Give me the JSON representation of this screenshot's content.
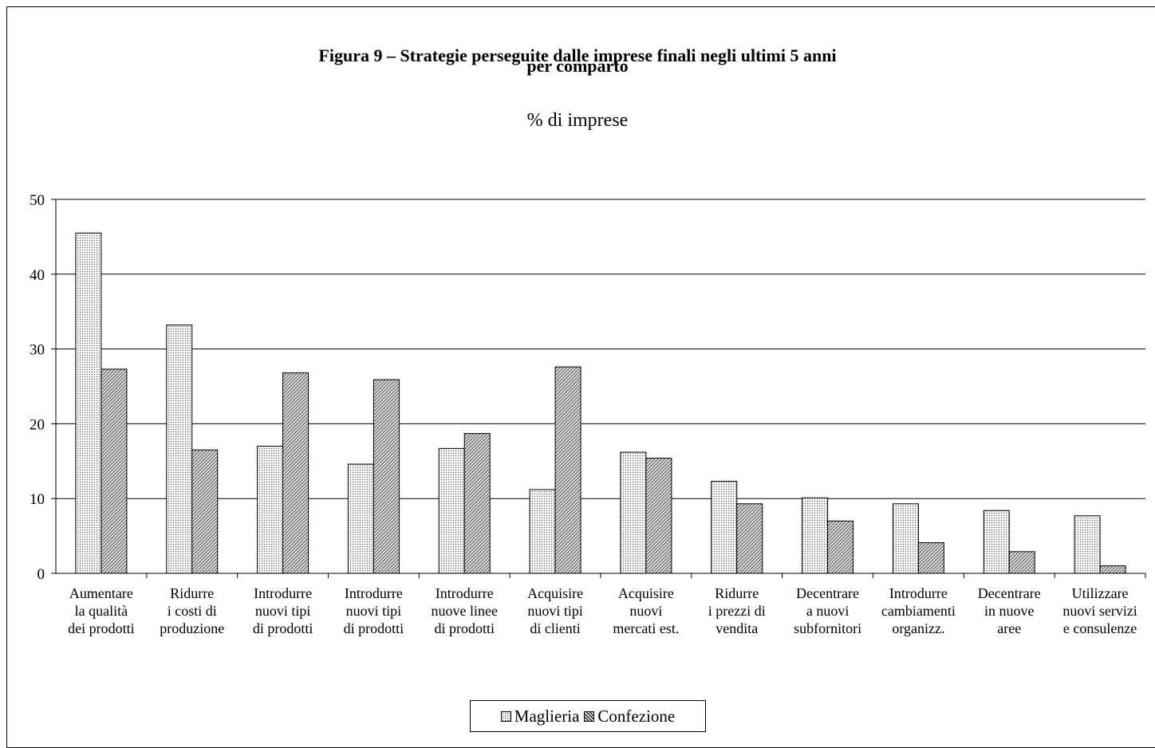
{
  "chart_data": {
    "type": "bar",
    "title": "Figura 9 – Strategie perseguite dalle imprese finali negli ultimi 5 anni",
    "title_line2": "per comparto",
    "subtitle": "% di imprese",
    "xlabel": "",
    "ylabel": "",
    "ylim": [
      0,
      50
    ],
    "yticks": [
      "0",
      "10",
      "20",
      "30",
      "40",
      "50"
    ],
    "grid": true,
    "legend_position": "bottom",
    "categories": [
      [
        "Aumentare",
        "la qualità",
        "dei prodotti"
      ],
      [
        "Ridurre",
        "i costi di",
        "produzione"
      ],
      [
        "Introdurre",
        "nuovi tipi",
        "di prodotti"
      ],
      [
        "Introdurre",
        "nuovi tipi",
        "di prodotti"
      ],
      [
        "Introdurre",
        "nuove linee",
        "di prodotti"
      ],
      [
        "Acquisire",
        "nuovi tipi",
        "di clienti"
      ],
      [
        "Acquisire",
        "nuovi",
        "mercati est."
      ],
      [
        "Ridurre",
        "i prezzi di",
        "vendita"
      ],
      [
        "Decentrare",
        "a nuovi",
        "subfornitori"
      ],
      [
        "Introdurre",
        "cambiamenti",
        "organizz."
      ],
      [
        "Decentrare",
        "in nuove",
        "aree"
      ],
      [
        "Utilizzare",
        "nuovi servizi",
        "e consulenze"
      ]
    ],
    "series": [
      {
        "name": "Maglieria",
        "values": [
          45.5,
          33.2,
          17.0,
          14.6,
          16.7,
          11.2,
          16.2,
          12.3,
          10.1,
          9.3,
          8.4,
          7.7
        ]
      },
      {
        "name": "Confezione",
        "values": [
          27.3,
          16.5,
          26.8,
          25.9,
          18.7,
          27.6,
          15.4,
          9.3,
          7.0,
          4.1,
          2.9,
          1.0
        ]
      }
    ]
  }
}
